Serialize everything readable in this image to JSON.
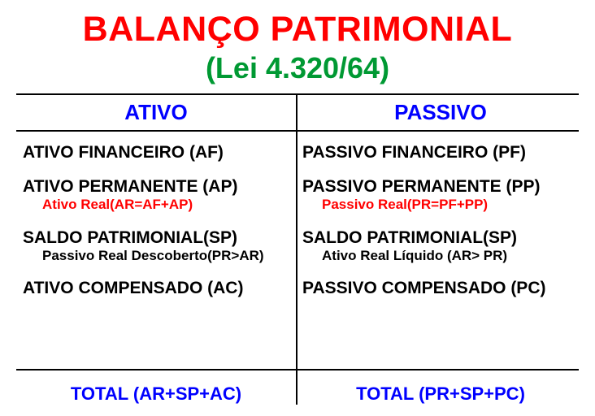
{
  "colors": {
    "title": "#ff0000",
    "subtitle": "#009933",
    "header": "#0000ff",
    "text": "#000000",
    "formula_red": "#ff0000",
    "total": "#0000ff"
  },
  "title": "BALANÇO PATRIMONIAL",
  "subtitle": "(Lei 4.320/64)",
  "left": {
    "header": "ATIVO",
    "rows": [
      {
        "main": "ATIVO FINANCEIRO (AF)"
      },
      {
        "main": "ATIVO PERMANENTE (AP)",
        "sub": "Ativo Real(AR=AF+AP)",
        "sub_color": "formula_red"
      },
      {
        "main": "SALDO PATRIMONIAL(SP)",
        "sub": "Passivo Real Descoberto(PR>AR)",
        "sub_color": "text"
      },
      {
        "main": "ATIVO COMPENSADO (AC)"
      }
    ],
    "total": "TOTAL (AR+SP+AC)"
  },
  "right": {
    "header": "PASSIVO",
    "rows": [
      {
        "main": "PASSIVO FINANCEIRO (PF)"
      },
      {
        "main": "PASSIVO PERMANENTE (PP)",
        "sub": "Passivo Real(PR=PF+PP)",
        "sub_color": "formula_red"
      },
      {
        "main": "SALDO PATRIMONIAL(SP)",
        "sub": "Ativo Real Líquido (AR> PR)",
        "sub_color": "text"
      },
      {
        "main": "PASSIVO COMPENSADO (PC)"
      }
    ],
    "total": "TOTAL (PR+SP+PC)"
  }
}
